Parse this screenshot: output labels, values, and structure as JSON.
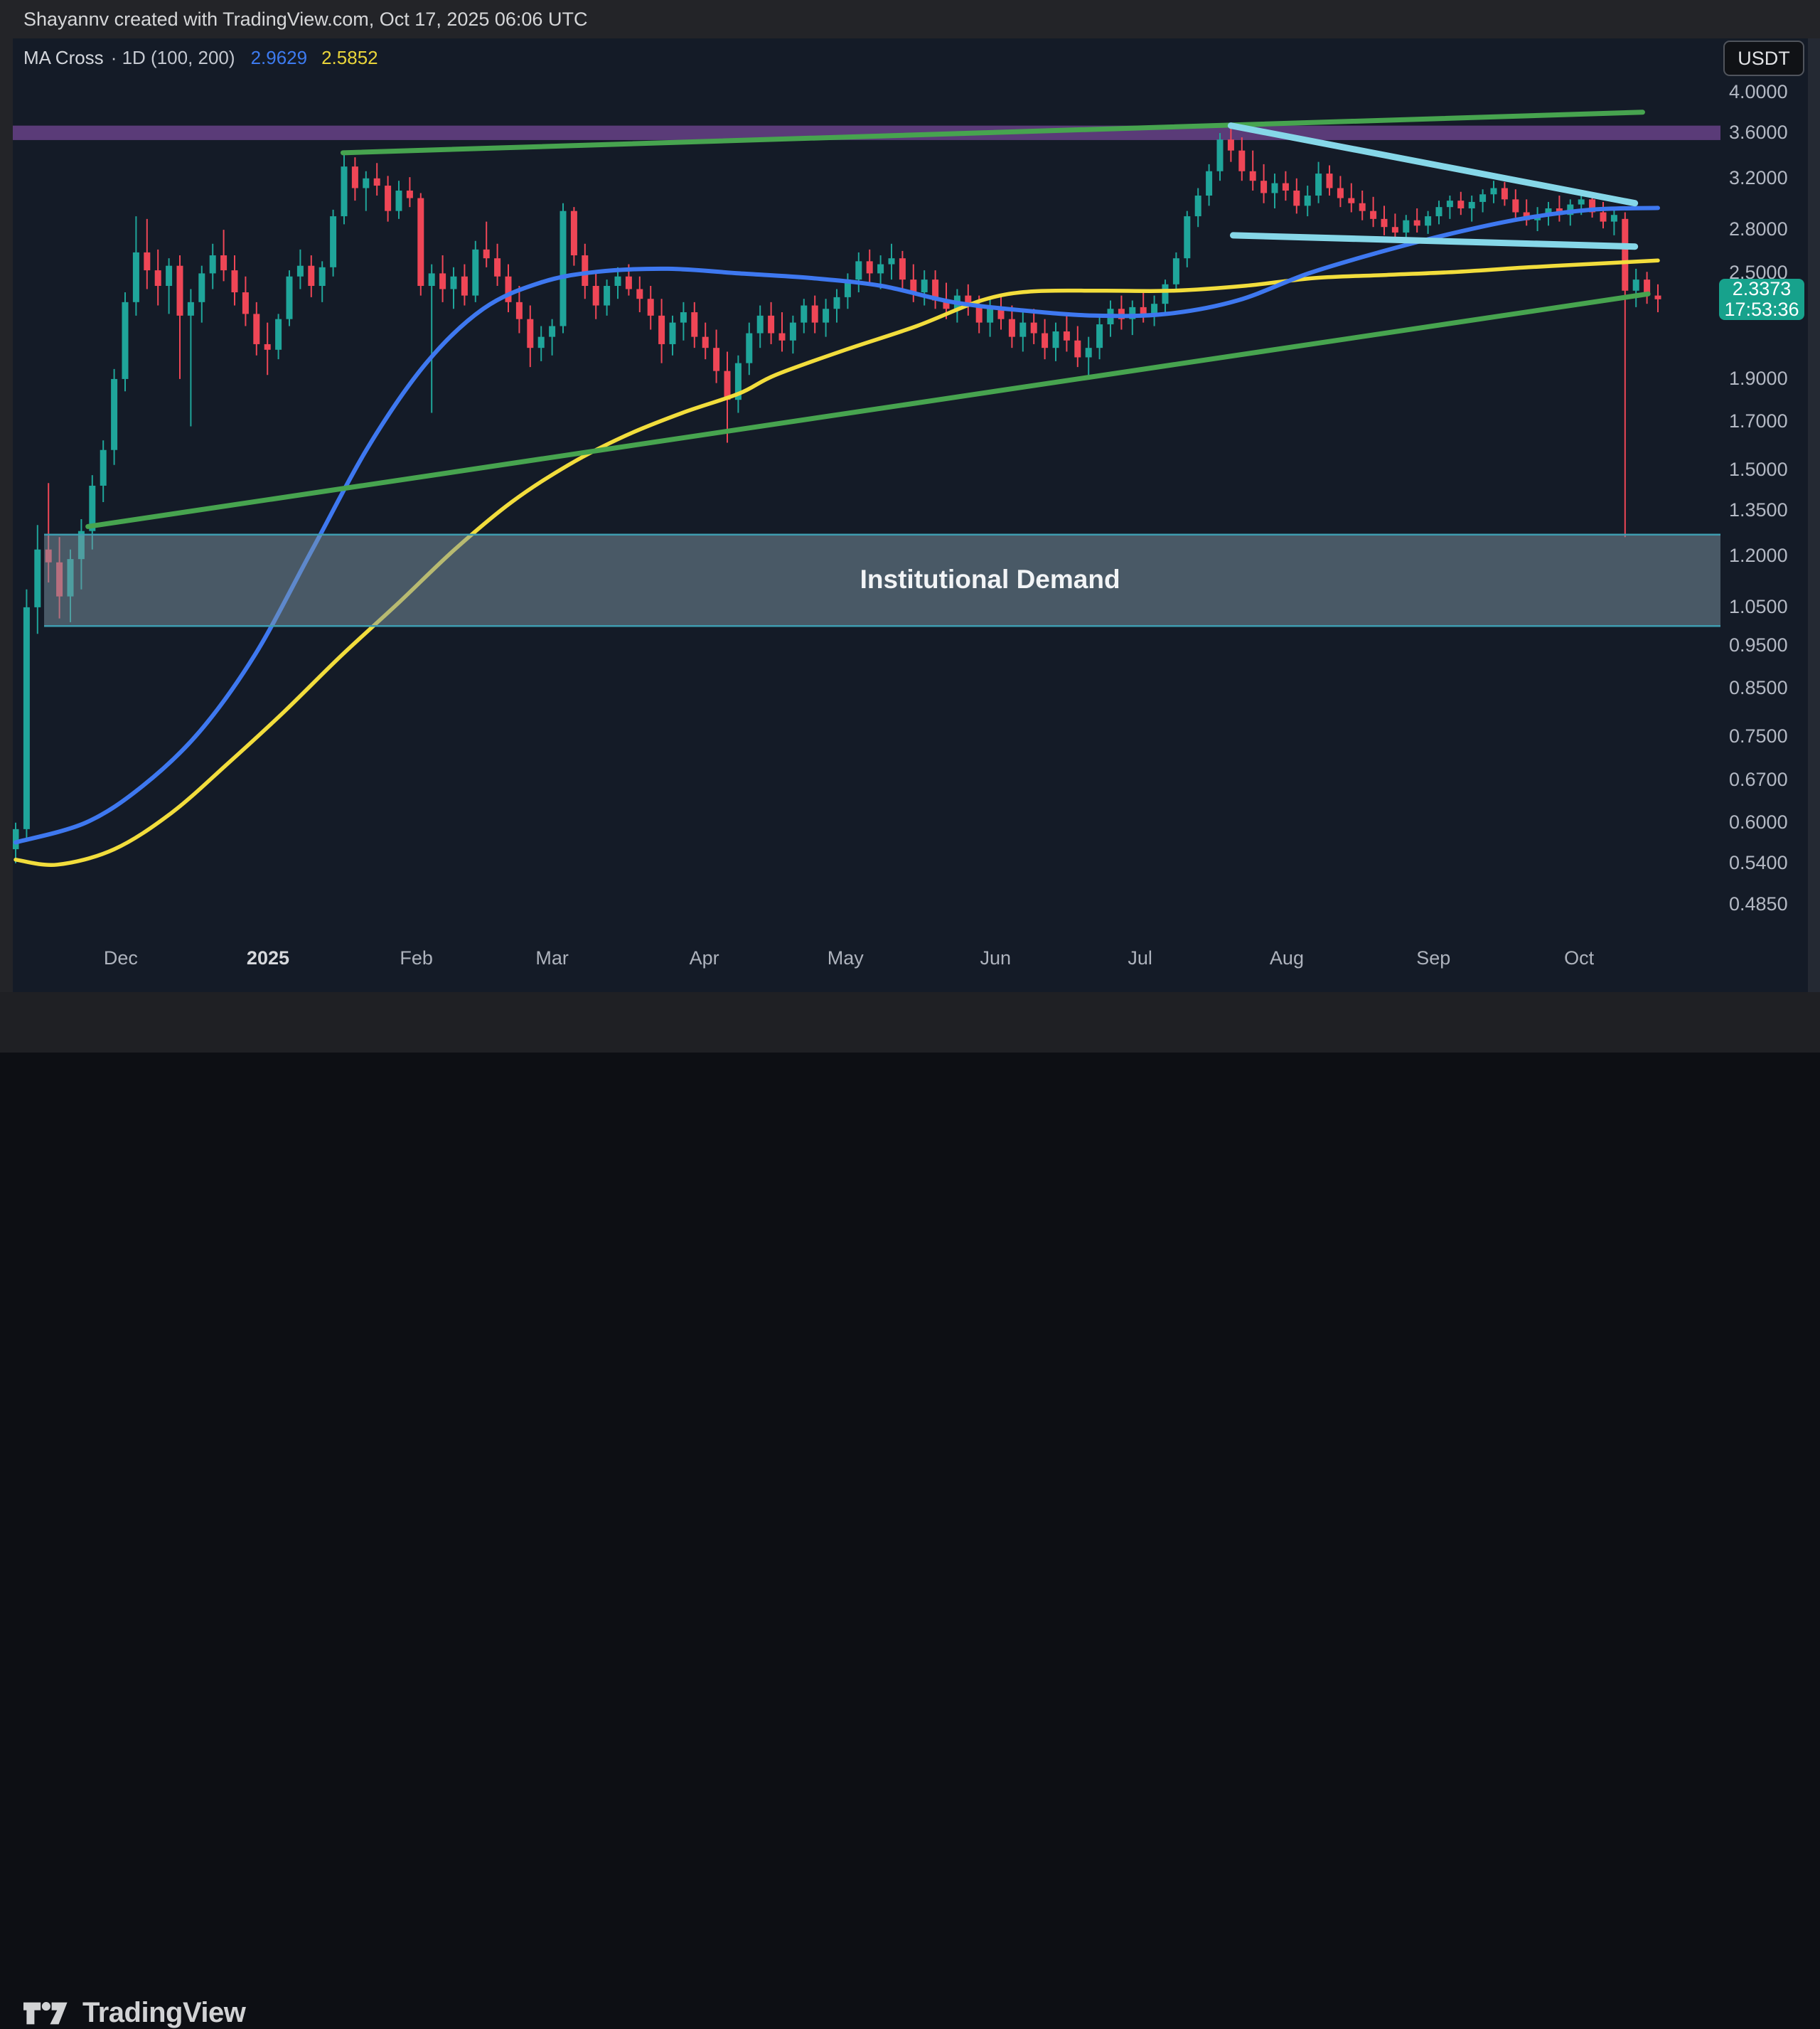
{
  "header": {
    "attribution": "Shayannv created with TradingView.com, Oct 17, 2025 06:06 UTC"
  },
  "legend": {
    "title": "MA Cross",
    "params": "· 1D (100, 200)",
    "ma100_value": "2.9629",
    "ma200_value": "2.5852"
  },
  "symbol_badge": {
    "label": "USDT"
  },
  "last_price_label": {
    "price_text": "2.3373",
    "countdown": "17:53:36",
    "price": 2.3373
  },
  "price_scale": {
    "ticks": [
      {
        "label": "4.0000",
        "price": 4.0
      },
      {
        "label": "3.6000",
        "price": 3.6
      },
      {
        "label": "3.2000",
        "price": 3.2
      },
      {
        "label": "2.8000",
        "price": 2.8
      },
      {
        "label": "2.5000",
        "price": 2.5
      },
      {
        "label": "1.9000",
        "price": 1.9
      },
      {
        "label": "1.7000",
        "price": 1.7
      },
      {
        "label": "1.5000",
        "price": 1.5
      },
      {
        "label": "1.3500",
        "price": 1.35
      },
      {
        "label": "1.2000",
        "price": 1.2
      },
      {
        "label": "1.0500",
        "price": 1.05
      },
      {
        "label": "0.9500",
        "price": 0.95
      },
      {
        "label": "0.8500",
        "price": 0.85
      },
      {
        "label": "0.7500",
        "price": 0.75
      },
      {
        "label": "0.6700",
        "price": 0.67
      },
      {
        "label": "0.6000",
        "price": 0.6
      },
      {
        "label": "0.5400",
        "price": 0.54
      },
      {
        "label": "0.4850",
        "price": 0.485
      }
    ]
  },
  "time_scale": {
    "ticks": [
      {
        "label": "Dec",
        "index": 9.6
      },
      {
        "label": "2025",
        "index": 23.05,
        "emphasis": true
      },
      {
        "label": "Feb",
        "index": 36.6
      },
      {
        "label": "Mar",
        "index": 49.0
      },
      {
        "label": "Apr",
        "index": 62.9
      },
      {
        "label": "May",
        "index": 75.8
      },
      {
        "label": "Jun",
        "index": 89.5
      },
      {
        "label": "Jul",
        "index": 102.7
      },
      {
        "label": "Aug",
        "index": 116.1
      },
      {
        "label": "Sep",
        "index": 129.5
      },
      {
        "label": "Oct",
        "index": 142.8
      }
    ]
  },
  "footer": {
    "brand": "TradingView"
  },
  "colors": {
    "background": "#141b27",
    "frame": "#232428",
    "candle_up": "#1fa59a",
    "candle_down": "#ef4656",
    "ma100": "#3e78f0",
    "ma200": "#f2dd3c",
    "trendline_green": "#47a44f",
    "trendline_cyan": "#86d7e8",
    "band_purple": "#5a3b78",
    "zone_fill": "rgba(125,152,165,0.5)",
    "zone_border": "#3f9db0",
    "axis_text": "#b4b9c4",
    "last_price_bg": "#17a28c"
  },
  "chart_data": {
    "type": "candlestick",
    "title": "MA Cross · 1D (100, 200)",
    "quote_currency": "USDT",
    "timeframe": "1D",
    "price_scale_type": "logarithmic",
    "ylim": [
      0.452,
      4.6
    ],
    "x_range": "Nov 2024 - Oct 17 2025",
    "last_price": 2.3373,
    "candles_ohlc": [
      [
        0.56,
        0.6,
        0.54,
        0.59
      ],
      [
        0.59,
        1.1,
        0.575,
        1.05
      ],
      [
        1.05,
        1.3,
        0.98,
        1.22
      ],
      [
        1.22,
        1.45,
        1.12,
        1.18
      ],
      [
        1.18,
        1.26,
        1.02,
        1.08
      ],
      [
        1.08,
        1.22,
        1.01,
        1.19
      ],
      [
        1.19,
        1.32,
        1.1,
        1.28
      ],
      [
        1.28,
        1.48,
        1.22,
        1.44
      ],
      [
        1.44,
        1.62,
        1.38,
        1.58
      ],
      [
        1.58,
        1.95,
        1.52,
        1.9
      ],
      [
        1.9,
        2.38,
        1.84,
        2.32
      ],
      [
        2.32,
        2.9,
        2.24,
        2.64
      ],
      [
        2.64,
        2.88,
        2.4,
        2.52
      ],
      [
        2.52,
        2.66,
        2.3,
        2.42
      ],
      [
        2.42,
        2.6,
        2.25,
        2.55
      ],
      [
        2.55,
        2.62,
        1.9,
        2.24
      ],
      [
        2.24,
        2.4,
        1.68,
        2.32
      ],
      [
        2.32,
        2.55,
        2.2,
        2.5
      ],
      [
        2.5,
        2.7,
        2.4,
        2.62
      ],
      [
        2.62,
        2.8,
        2.45,
        2.52
      ],
      [
        2.52,
        2.62,
        2.3,
        2.38
      ],
      [
        2.38,
        2.48,
        2.18,
        2.25
      ],
      [
        2.25,
        2.32,
        2.02,
        2.08
      ],
      [
        2.08,
        2.2,
        1.92,
        2.05
      ],
      [
        2.05,
        2.25,
        2.0,
        2.22
      ],
      [
        2.22,
        2.52,
        2.18,
        2.48
      ],
      [
        2.48,
        2.66,
        2.4,
        2.55
      ],
      [
        2.55,
        2.62,
        2.35,
        2.42
      ],
      [
        2.42,
        2.58,
        2.32,
        2.54
      ],
      [
        2.54,
        2.95,
        2.48,
        2.9
      ],
      [
        2.9,
        3.4,
        2.84,
        3.3
      ],
      [
        3.3,
        3.38,
        3.02,
        3.12
      ],
      [
        3.12,
        3.26,
        2.94,
        3.2
      ],
      [
        3.2,
        3.33,
        3.06,
        3.14
      ],
      [
        3.14,
        3.22,
        2.86,
        2.94
      ],
      [
        2.94,
        3.18,
        2.88,
        3.1
      ],
      [
        3.1,
        3.21,
        2.97,
        3.04
      ],
      [
        3.04,
        3.08,
        2.36,
        2.42
      ],
      [
        2.42,
        2.56,
        1.74,
        2.5
      ],
      [
        2.5,
        2.62,
        2.32,
        2.4
      ],
      [
        2.4,
        2.54,
        2.28,
        2.48
      ],
      [
        2.48,
        2.56,
        2.3,
        2.36
      ],
      [
        2.36,
        2.72,
        2.32,
        2.66
      ],
      [
        2.66,
        2.86,
        2.54,
        2.6
      ],
      [
        2.6,
        2.7,
        2.42,
        2.48
      ],
      [
        2.48,
        2.56,
        2.26,
        2.32
      ],
      [
        2.32,
        2.42,
        2.14,
        2.22
      ],
      [
        2.22,
        2.3,
        1.96,
        2.06
      ],
      [
        2.06,
        2.18,
        1.99,
        2.12
      ],
      [
        2.12,
        2.22,
        2.02,
        2.18
      ],
      [
        2.18,
        3.0,
        2.14,
        2.94
      ],
      [
        2.94,
        2.97,
        2.55,
        2.62
      ],
      [
        2.62,
        2.7,
        2.34,
        2.42
      ],
      [
        2.42,
        2.52,
        2.22,
        2.3
      ],
      [
        2.3,
        2.46,
        2.24,
        2.42
      ],
      [
        2.42,
        2.54,
        2.34,
        2.48
      ],
      [
        2.48,
        2.56,
        2.36,
        2.4
      ],
      [
        2.4,
        2.48,
        2.26,
        2.34
      ],
      [
        2.34,
        2.42,
        2.16,
        2.24
      ],
      [
        2.24,
        2.34,
        1.98,
        2.08
      ],
      [
        2.08,
        2.24,
        2.02,
        2.2
      ],
      [
        2.2,
        2.32,
        2.1,
        2.26
      ],
      [
        2.26,
        2.32,
        2.06,
        2.12
      ],
      [
        2.12,
        2.2,
        2.0,
        2.06
      ],
      [
        2.06,
        2.16,
        1.88,
        1.94
      ],
      [
        1.94,
        2.04,
        1.61,
        1.8
      ],
      [
        1.8,
        2.02,
        1.74,
        1.98
      ],
      [
        1.98,
        2.2,
        1.92,
        2.14
      ],
      [
        2.14,
        2.3,
        2.06,
        2.24
      ],
      [
        2.24,
        2.32,
        2.08,
        2.14
      ],
      [
        2.14,
        2.26,
        2.04,
        2.1
      ],
      [
        2.1,
        2.24,
        2.03,
        2.2
      ],
      [
        2.2,
        2.34,
        2.14,
        2.3
      ],
      [
        2.3,
        2.36,
        2.14,
        2.2
      ],
      [
        2.2,
        2.34,
        2.12,
        2.28
      ],
      [
        2.28,
        2.4,
        2.2,
        2.35
      ],
      [
        2.35,
        2.5,
        2.28,
        2.46
      ],
      [
        2.46,
        2.64,
        2.38,
        2.58
      ],
      [
        2.58,
        2.66,
        2.44,
        2.5
      ],
      [
        2.5,
        2.62,
        2.4,
        2.56
      ],
      [
        2.56,
        2.7,
        2.46,
        2.6
      ],
      [
        2.6,
        2.65,
        2.4,
        2.46
      ],
      [
        2.46,
        2.56,
        2.32,
        2.38
      ],
      [
        2.38,
        2.52,
        2.3,
        2.46
      ],
      [
        2.46,
        2.52,
        2.28,
        2.33
      ],
      [
        2.33,
        2.44,
        2.22,
        2.28
      ],
      [
        2.28,
        2.4,
        2.2,
        2.36
      ],
      [
        2.36,
        2.43,
        2.24,
        2.3
      ],
      [
        2.3,
        2.36,
        2.14,
        2.2
      ],
      [
        2.2,
        2.34,
        2.12,
        2.28
      ],
      [
        2.28,
        2.36,
        2.16,
        2.22
      ],
      [
        2.22,
        2.3,
        2.06,
        2.12
      ],
      [
        2.12,
        2.26,
        2.04,
        2.2
      ],
      [
        2.2,
        2.28,
        2.08,
        2.14
      ],
      [
        2.14,
        2.22,
        2.0,
        2.06
      ],
      [
        2.06,
        2.2,
        1.99,
        2.15
      ],
      [
        2.15,
        2.26,
        2.04,
        2.1
      ],
      [
        2.1,
        2.18,
        1.96,
        2.01
      ],
      [
        2.01,
        2.12,
        1.9,
        2.06
      ],
      [
        2.06,
        2.24,
        2.0,
        2.19
      ],
      [
        2.19,
        2.33,
        2.12,
        2.28
      ],
      [
        2.28,
        2.36,
        2.16,
        2.22
      ],
      [
        2.22,
        2.33,
        2.13,
        2.29
      ],
      [
        2.29,
        2.38,
        2.2,
        2.25
      ],
      [
        2.25,
        2.36,
        2.18,
        2.31
      ],
      [
        2.31,
        2.46,
        2.26,
        2.43
      ],
      [
        2.43,
        2.64,
        2.39,
        2.6
      ],
      [
        2.6,
        2.94,
        2.54,
        2.9
      ],
      [
        2.9,
        3.12,
        2.82,
        3.06
      ],
      [
        3.06,
        3.32,
        2.98,
        3.26
      ],
      [
        3.26,
        3.6,
        3.18,
        3.54
      ],
      [
        3.54,
        3.66,
        3.34,
        3.44
      ],
      [
        3.44,
        3.56,
        3.18,
        3.26
      ],
      [
        3.26,
        3.44,
        3.1,
        3.18
      ],
      [
        3.18,
        3.32,
        3.0,
        3.08
      ],
      [
        3.08,
        3.24,
        2.96,
        3.16
      ],
      [
        3.16,
        3.26,
        3.02,
        3.1
      ],
      [
        3.1,
        3.2,
        2.92,
        2.98
      ],
      [
        2.98,
        3.14,
        2.9,
        3.06
      ],
      [
        3.06,
        3.34,
        3.0,
        3.24
      ],
      [
        3.24,
        3.31,
        3.06,
        3.12
      ],
      [
        3.12,
        3.22,
        2.97,
        3.04
      ],
      [
        3.04,
        3.16,
        2.93,
        3.0
      ],
      [
        3.0,
        3.1,
        2.87,
        2.94
      ],
      [
        2.94,
        3.05,
        2.82,
        2.88
      ],
      [
        2.88,
        2.98,
        2.76,
        2.82
      ],
      [
        2.82,
        2.92,
        2.71,
        2.78
      ],
      [
        2.78,
        2.91,
        2.73,
        2.87
      ],
      [
        2.87,
        2.96,
        2.78,
        2.83
      ],
      [
        2.83,
        2.94,
        2.77,
        2.9
      ],
      [
        2.9,
        3.02,
        2.84,
        2.97
      ],
      [
        2.97,
        3.06,
        2.88,
        3.02
      ],
      [
        3.02,
        3.09,
        2.91,
        2.96
      ],
      [
        2.96,
        3.06,
        2.86,
        3.01
      ],
      [
        3.01,
        3.11,
        2.93,
        3.07
      ],
      [
        3.07,
        3.18,
        3.0,
        3.12
      ],
      [
        3.12,
        3.17,
        2.98,
        3.03
      ],
      [
        3.03,
        3.11,
        2.89,
        2.93
      ],
      [
        2.93,
        3.03,
        2.83,
        2.87
      ],
      [
        2.87,
        2.97,
        2.79,
        2.91
      ],
      [
        2.91,
        3.01,
        2.83,
        2.96
      ],
      [
        2.96,
        3.06,
        2.86,
        2.91
      ],
      [
        2.91,
        3.03,
        2.83,
        2.99
      ],
      [
        2.99,
        3.09,
        2.91,
        3.03
      ],
      [
        3.03,
        3.07,
        2.89,
        2.93
      ],
      [
        2.93,
        3.01,
        2.81,
        2.86
      ],
      [
        2.86,
        2.96,
        2.76,
        2.91
      ],
      [
        2.88,
        2.93,
        1.26,
        2.39
      ],
      [
        2.39,
        2.53,
        2.29,
        2.46
      ],
      [
        2.46,
        2.51,
        2.31,
        2.36
      ],
      [
        2.36,
        2.43,
        2.26,
        2.3373
      ]
    ],
    "series": [
      {
        "name": "MA 100",
        "color_key": "ma100",
        "last_value": 2.9629,
        "points": [
          [
            0,
            0.57
          ],
          [
            6.4,
            0.6
          ],
          [
            11.6,
            0.66
          ],
          [
            16.8,
            0.76
          ],
          [
            21.9,
            0.93
          ],
          [
            27.1,
            1.22
          ],
          [
            32.3,
            1.6
          ],
          [
            37.5,
            1.98
          ],
          [
            42.7,
            2.28
          ],
          [
            47.9,
            2.44
          ],
          [
            53.1,
            2.51
          ],
          [
            59.6,
            2.53
          ],
          [
            66.1,
            2.5
          ],
          [
            72.6,
            2.47
          ],
          [
            79.1,
            2.42
          ],
          [
            85.6,
            2.32
          ],
          [
            92.1,
            2.27
          ],
          [
            98.6,
            2.24
          ],
          [
            105.1,
            2.25
          ],
          [
            111.6,
            2.33
          ],
          [
            118.1,
            2.5
          ],
          [
            124.5,
            2.64
          ],
          [
            131,
            2.77
          ],
          [
            137.5,
            2.88
          ],
          [
            144,
            2.95
          ],
          [
            150,
            2.963
          ]
        ]
      },
      {
        "name": "MA 200",
        "color_key": "ma200",
        "last_value": 2.5852,
        "points": [
          [
            0,
            0.545
          ],
          [
            3.8,
            0.538
          ],
          [
            9,
            0.56
          ],
          [
            14.2,
            0.615
          ],
          [
            19.4,
            0.7
          ],
          [
            24.5,
            0.8
          ],
          [
            29.7,
            0.925
          ],
          [
            34.9,
            1.06
          ],
          [
            40.1,
            1.22
          ],
          [
            45.3,
            1.38
          ],
          [
            50.5,
            1.52
          ],
          [
            55.7,
            1.64
          ],
          [
            60.9,
            1.74
          ],
          [
            66.1,
            1.83
          ],
          [
            69.4,
            1.92
          ],
          [
            75.8,
            2.05
          ],
          [
            82.3,
            2.18
          ],
          [
            88.2,
            2.33
          ],
          [
            92.7,
            2.385
          ],
          [
            99.2,
            2.39
          ],
          [
            105.7,
            2.39
          ],
          [
            112.2,
            2.42
          ],
          [
            118.7,
            2.47
          ],
          [
            125.2,
            2.49
          ],
          [
            131.7,
            2.51
          ],
          [
            138.2,
            2.54
          ],
          [
            144.7,
            2.565
          ],
          [
            150,
            2.585
          ]
        ]
      }
    ],
    "trendlines": [
      {
        "name": "ascending-support",
        "color_key": "trendline_green",
        "width": 7,
        "x1": 6.6,
        "price1": 1.295,
        "x2": 149.1,
        "price2": 2.37
      },
      {
        "name": "upper-resistance",
        "color_key": "trendline_green",
        "width": 7,
        "x1": 29.9,
        "price1": 3.42,
        "x2": 148.6,
        "price2": 3.8
      },
      {
        "name": "wedge-top",
        "color_key": "trendline_cyan",
        "width": 9,
        "x1": 111.0,
        "price1": 3.67,
        "x2": 147.9,
        "price2": 3.0
      },
      {
        "name": "wedge-bottom",
        "color_key": "trendline_cyan",
        "width": 9,
        "x1": 111.2,
        "price1": 2.76,
        "x2": 147.9,
        "price2": 2.68
      }
    ],
    "bands": [
      {
        "name": "resistance-band",
        "price_top": 3.67,
        "price_bottom": 3.535,
        "color_key": "band_purple",
        "full_width": true
      }
    ],
    "zones": [
      {
        "label": "Institutional Demand",
        "price_top": 1.268,
        "price_bottom": 1.0,
        "x1": 2.6,
        "x2": "right-edge",
        "label_center_index": 89
      }
    ]
  }
}
